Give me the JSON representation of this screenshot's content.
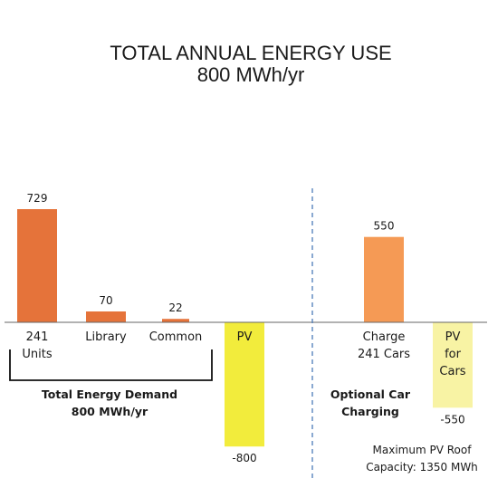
{
  "chart_data": {
    "type": "bar",
    "title": "TOTAL ANNUAL ENERGY USE",
    "subtitle": "800 MWh/yr",
    "bars": [
      {
        "label": [
          "241",
          "Units"
        ],
        "value": 729,
        "value_label": "729",
        "color": "#e5733a"
      },
      {
        "label": [
          "Library"
        ],
        "value": 70,
        "value_label": "70",
        "color": "#e5733a"
      },
      {
        "label": [
          "Common"
        ],
        "value": 22,
        "value_label": "22",
        "color": "#e5733a"
      },
      {
        "label": [
          "PV"
        ],
        "value": -800,
        "value_label": "-800",
        "color": "#f2ec3c"
      },
      {
        "label": [
          "Charge",
          "241 Cars"
        ],
        "value": 550,
        "value_label": "550",
        "color": "#f59a55"
      },
      {
        "label": [
          "PV",
          "for",
          "Cars"
        ],
        "value": -550,
        "value_label": "-550",
        "color": "#f8f3a4"
      }
    ],
    "groups": [
      {
        "label": [
          "Total Energy Demand",
          "800 MWh/yr"
        ]
      },
      {
        "label": [
          "Optional Car",
          "Charging"
        ]
      }
    ],
    "note": [
      "Maximum PV Roof",
      "Capacity: 1350 MWh"
    ],
    "units": "MWh/yr",
    "grid": false
  }
}
